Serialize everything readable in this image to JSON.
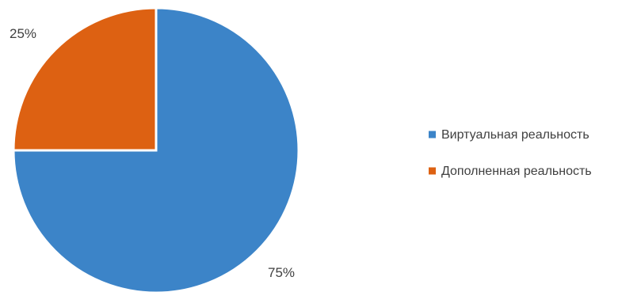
{
  "chart_data": {
    "type": "pie",
    "slices": [
      {
        "label": "Виртуальная реальность",
        "value": 75,
        "display": "75%",
        "color": "#3c84c8"
      },
      {
        "label": "Дополненная реальность",
        "value": 25,
        "display": "25%",
        "color": "#dd6112"
      }
    ],
    "legend_position": "right",
    "start_angle": "12 o'clock",
    "direction": "clockwise"
  }
}
